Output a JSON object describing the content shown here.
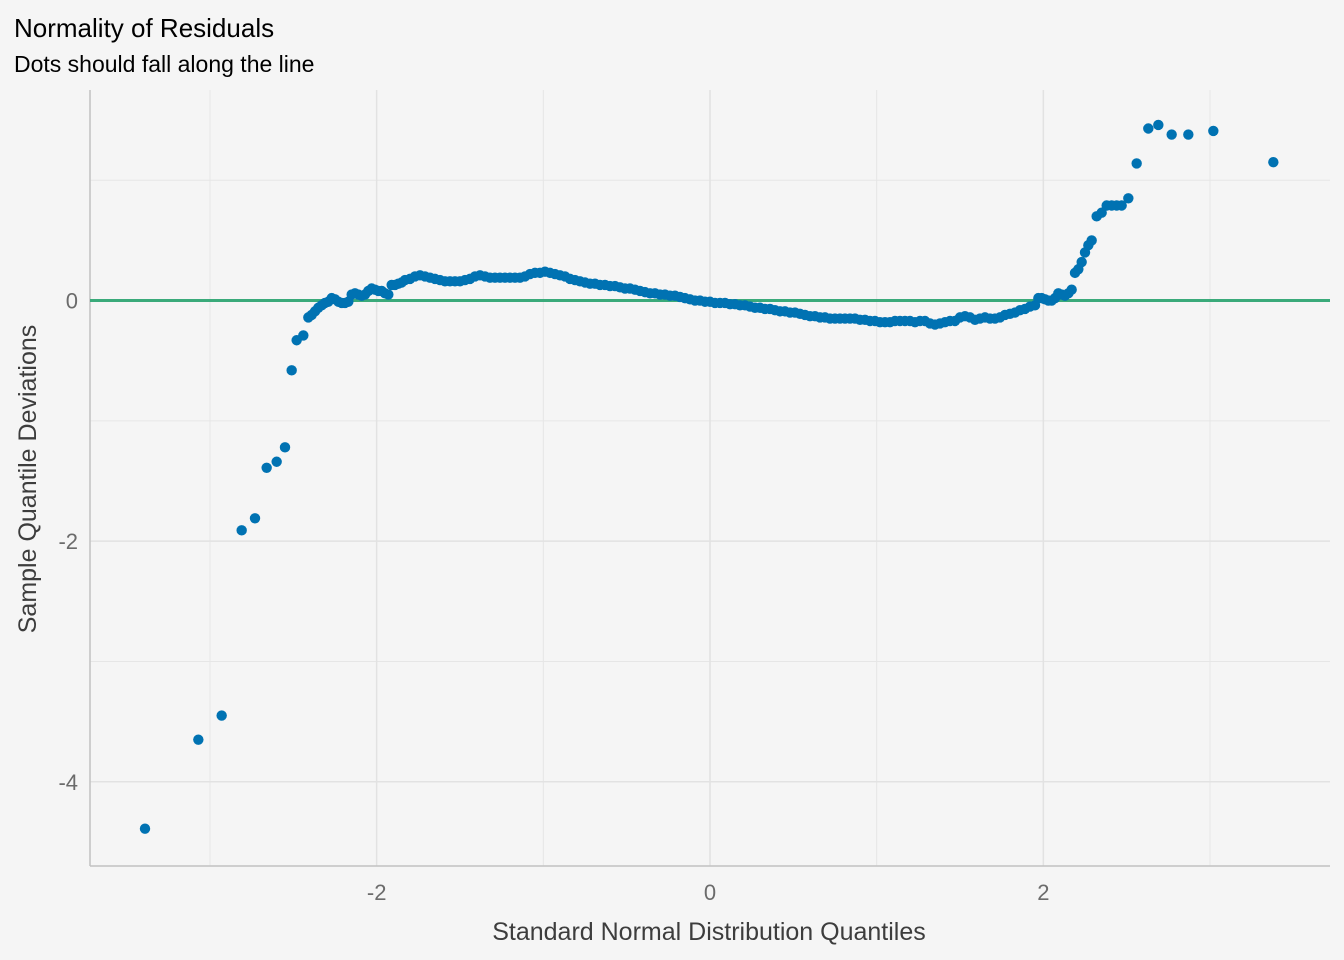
{
  "chart_data": {
    "type": "scatter",
    "title": "Normality of Residuals",
    "subtitle": "Dots should fall along the line",
    "xlabel": "Standard Normal Distribution Quantiles",
    "ylabel": "Sample Quantile Deviations",
    "xlim": [
      -3.72,
      3.72
    ],
    "ylim": [
      -4.7,
      1.75
    ],
    "x_ticks": [
      -2,
      0,
      2
    ],
    "x_tick_labels": [
      "-2",
      "0",
      "2"
    ],
    "y_ticks": [
      -4,
      -2,
      0
    ],
    "y_tick_labels": [
      "-4",
      "-2",
      "0"
    ],
    "grid": true,
    "reference_line": {
      "y": 0,
      "color": "#3aaa7a"
    },
    "point_color": "#0072b2",
    "points": [
      [
        -3.39,
        -4.39
      ],
      [
        -3.07,
        -3.65
      ],
      [
        -2.93,
        -3.45
      ],
      [
        -2.81,
        -1.91
      ],
      [
        -2.73,
        -1.81
      ],
      [
        -2.66,
        -1.39
      ],
      [
        -2.6,
        -1.34
      ],
      [
        -2.55,
        -1.22
      ],
      [
        -2.51,
        -0.58
      ],
      [
        -2.48,
        -0.33
      ],
      [
        -2.44,
        -0.29
      ],
      [
        -2.41,
        -0.14
      ],
      [
        -2.39,
        -0.12
      ],
      [
        -2.37,
        -0.09
      ],
      [
        -2.35,
        -0.06
      ],
      [
        -2.33,
        -0.04
      ],
      [
        -2.31,
        -0.02
      ],
      [
        -2.29,
        -0.01
      ],
      [
        -2.27,
        0.02
      ],
      [
        -2.25,
        0.01
      ],
      [
        -2.23,
        -0.01
      ],
      [
        -2.21,
        -0.02
      ],
      [
        -2.19,
        -0.02
      ],
      [
        -2.17,
        -0.01
      ],
      [
        -2.15,
        0.05
      ],
      [
        -2.13,
        0.06
      ],
      [
        -2.11,
        0.05
      ],
      [
        -2.09,
        0.04
      ],
      [
        -2.07,
        0.05
      ],
      [
        -2.05,
        0.08
      ],
      [
        -2.03,
        0.1
      ],
      [
        -2.01,
        0.09
      ],
      [
        -1.99,
        0.08
      ],
      [
        -1.97,
        0.08
      ],
      [
        -1.95,
        0.06
      ],
      [
        -1.93,
        0.05
      ],
      [
        -1.91,
        0.13
      ],
      [
        -1.89,
        0.13
      ],
      [
        -1.87,
        0.14
      ],
      [
        -1.85,
        0.15
      ],
      [
        -1.83,
        0.17
      ],
      [
        -1.8,
        0.18
      ],
      [
        -1.77,
        0.2
      ],
      [
        -1.74,
        0.21
      ],
      [
        -1.71,
        0.2
      ],
      [
        -1.68,
        0.19
      ],
      [
        -1.65,
        0.18
      ],
      [
        -1.62,
        0.17
      ],
      [
        -1.59,
        0.16
      ],
      [
        -1.56,
        0.16
      ],
      [
        -1.53,
        0.16
      ],
      [
        -1.5,
        0.16
      ],
      [
        -1.47,
        0.17
      ],
      [
        -1.44,
        0.18
      ],
      [
        -1.41,
        0.2
      ],
      [
        -1.38,
        0.21
      ],
      [
        -1.35,
        0.2
      ],
      [
        -1.32,
        0.19
      ],
      [
        -1.29,
        0.19
      ],
      [
        -1.26,
        0.19
      ],
      [
        -1.23,
        0.19
      ],
      [
        -1.2,
        0.19
      ],
      [
        -1.17,
        0.19
      ],
      [
        -1.14,
        0.19
      ],
      [
        -1.11,
        0.2
      ],
      [
        -1.08,
        0.22
      ],
      [
        -1.05,
        0.23
      ],
      [
        -1.02,
        0.23
      ],
      [
        -0.99,
        0.24
      ],
      [
        -0.96,
        0.23
      ],
      [
        -0.93,
        0.22
      ],
      [
        -0.9,
        0.21
      ],
      [
        -0.87,
        0.2
      ],
      [
        -0.84,
        0.18
      ],
      [
        -0.81,
        0.17
      ],
      [
        -0.78,
        0.16
      ],
      [
        -0.75,
        0.15
      ],
      [
        -0.72,
        0.14
      ],
      [
        -0.69,
        0.14
      ],
      [
        -0.66,
        0.13
      ],
      [
        -0.63,
        0.13
      ],
      [
        -0.6,
        0.12
      ],
      [
        -0.57,
        0.12
      ],
      [
        -0.54,
        0.11
      ],
      [
        -0.51,
        0.1
      ],
      [
        -0.48,
        0.1
      ],
      [
        -0.45,
        0.09
      ],
      [
        -0.42,
        0.08
      ],
      [
        -0.39,
        0.07
      ],
      [
        -0.36,
        0.06
      ],
      [
        -0.33,
        0.06
      ],
      [
        -0.3,
        0.05
      ],
      [
        -0.27,
        0.05
      ],
      [
        -0.24,
        0.04
      ],
      [
        -0.21,
        0.04
      ],
      [
        -0.18,
        0.03
      ],
      [
        -0.15,
        0.02
      ],
      [
        -0.12,
        0.01
      ],
      [
        -0.09,
        0.0
      ],
      [
        -0.06,
        0.0
      ],
      [
        -0.03,
        -0.01
      ],
      [
        0.0,
        -0.01
      ],
      [
        0.03,
        -0.02
      ],
      [
        0.06,
        -0.02
      ],
      [
        0.09,
        -0.02
      ],
      [
        0.12,
        -0.03
      ],
      [
        0.15,
        -0.03
      ],
      [
        0.18,
        -0.04
      ],
      [
        0.21,
        -0.04
      ],
      [
        0.24,
        -0.05
      ],
      [
        0.27,
        -0.06
      ],
      [
        0.3,
        -0.06
      ],
      [
        0.33,
        -0.07
      ],
      [
        0.36,
        -0.07
      ],
      [
        0.39,
        -0.08
      ],
      [
        0.42,
        -0.09
      ],
      [
        0.45,
        -0.09
      ],
      [
        0.48,
        -0.1
      ],
      [
        0.51,
        -0.1
      ],
      [
        0.54,
        -0.11
      ],
      [
        0.57,
        -0.12
      ],
      [
        0.6,
        -0.13
      ],
      [
        0.63,
        -0.13
      ],
      [
        0.66,
        -0.14
      ],
      [
        0.69,
        -0.14
      ],
      [
        0.72,
        -0.15
      ],
      [
        0.75,
        -0.15
      ],
      [
        0.78,
        -0.15
      ],
      [
        0.81,
        -0.15
      ],
      [
        0.84,
        -0.15
      ],
      [
        0.87,
        -0.15
      ],
      [
        0.9,
        -0.16
      ],
      [
        0.93,
        -0.16
      ],
      [
        0.96,
        -0.17
      ],
      [
        0.99,
        -0.17
      ],
      [
        1.02,
        -0.18
      ],
      [
        1.05,
        -0.18
      ],
      [
        1.08,
        -0.18
      ],
      [
        1.11,
        -0.17
      ],
      [
        1.14,
        -0.17
      ],
      [
        1.17,
        -0.17
      ],
      [
        1.2,
        -0.17
      ],
      [
        1.23,
        -0.18
      ],
      [
        1.26,
        -0.17
      ],
      [
        1.29,
        -0.17
      ],
      [
        1.32,
        -0.19
      ],
      [
        1.35,
        -0.2
      ],
      [
        1.38,
        -0.19
      ],
      [
        1.41,
        -0.18
      ],
      [
        1.44,
        -0.17
      ],
      [
        1.47,
        -0.17
      ],
      [
        1.5,
        -0.14
      ],
      [
        1.53,
        -0.13
      ],
      [
        1.56,
        -0.14
      ],
      [
        1.59,
        -0.16
      ],
      [
        1.62,
        -0.15
      ],
      [
        1.65,
        -0.14
      ],
      [
        1.68,
        -0.15
      ],
      [
        1.71,
        -0.15
      ],
      [
        1.74,
        -0.14
      ],
      [
        1.77,
        -0.12
      ],
      [
        1.8,
        -0.11
      ],
      [
        1.83,
        -0.1
      ],
      [
        1.86,
        -0.08
      ],
      [
        1.89,
        -0.07
      ],
      [
        1.92,
        -0.05
      ],
      [
        1.95,
        -0.04
      ],
      [
        1.97,
        0.02
      ],
      [
        1.99,
        0.02
      ],
      [
        2.01,
        0.01
      ],
      [
        2.03,
        0.0
      ],
      [
        2.05,
        0.0
      ],
      [
        2.07,
        0.02
      ],
      [
        2.09,
        0.06
      ],
      [
        2.11,
        0.05
      ],
      [
        2.13,
        0.04
      ],
      [
        2.15,
        0.06
      ],
      [
        2.17,
        0.09
      ],
      [
        2.19,
        0.23
      ],
      [
        2.21,
        0.26
      ],
      [
        2.23,
        0.32
      ],
      [
        2.25,
        0.4
      ],
      [
        2.27,
        0.46
      ],
      [
        2.29,
        0.5
      ],
      [
        2.32,
        0.7
      ],
      [
        2.35,
        0.73
      ],
      [
        2.38,
        0.79
      ],
      [
        2.41,
        0.79
      ],
      [
        2.44,
        0.79
      ],
      [
        2.47,
        0.79
      ],
      [
        2.51,
        0.85
      ],
      [
        2.56,
        1.14
      ],
      [
        2.63,
        1.43
      ],
      [
        2.69,
        1.46
      ],
      [
        2.77,
        1.38
      ],
      [
        2.87,
        1.38
      ],
      [
        3.02,
        1.41
      ],
      [
        3.38,
        1.15
      ]
    ]
  }
}
